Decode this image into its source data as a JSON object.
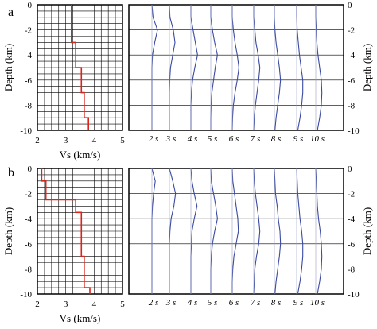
{
  "chart_data": [
    {
      "panel": "a",
      "type": "line",
      "subtype": "step-profile",
      "ylabel": "Depth (km)",
      "xlabel": "Vs (km/s)",
      "xlim": [
        2,
        5
      ],
      "ylim": [
        -10,
        0
      ],
      "xticks": [
        "2",
        "3",
        "4",
        "5"
      ],
      "yticks": [
        "0",
        "-2",
        "-4",
        "-6",
        "-8",
        "-10"
      ],
      "grid": true,
      "profile": [
        {
          "depth": 0,
          "vs": 3.2
        },
        {
          "depth": -3,
          "vs": 3.2
        },
        {
          "depth": -3,
          "vs": 3.35
        },
        {
          "depth": -5,
          "vs": 3.35
        },
        {
          "depth": -5,
          "vs": 3.55
        },
        {
          "depth": -7,
          "vs": 3.55
        },
        {
          "depth": -7,
          "vs": 3.65
        },
        {
          "depth": -9,
          "vs": 3.65
        },
        {
          "depth": -9,
          "vs": 3.8
        },
        {
          "depth": -10,
          "vs": 3.8
        }
      ],
      "line_color": "#d9231b"
    },
    {
      "panel": "a",
      "type": "line",
      "subtype": "sensitivity-kernels",
      "ylabel": "Depth (km)",
      "ylim": [
        -10,
        0
      ],
      "yticks": [
        "0",
        "-2",
        "-4",
        "-6",
        "-8",
        "-10"
      ],
      "series_labels": [
        "2 s",
        "3 s",
        "4 s",
        "5 s",
        "6 s",
        "7 s",
        "8 s",
        "9 s",
        "10 s"
      ],
      "line_color": "#3b4aa0",
      "depths": [
        -1,
        -2,
        -3,
        -4,
        -5,
        -6,
        -7,
        -8,
        -9,
        -10
      ],
      "kernels": [
        [
          0.1,
          0.5,
          0.25,
          0.05,
          0.0,
          0.0,
          0.0,
          0.0,
          0.0,
          0.0
        ],
        [
          0.05,
          0.35,
          0.5,
          0.3,
          0.1,
          0.03,
          0.0,
          0.0,
          0.0,
          0.0
        ],
        [
          0.0,
          0.2,
          0.4,
          0.6,
          0.35,
          0.15,
          0.05,
          0.0,
          0.0,
          0.0
        ],
        [
          0.0,
          0.15,
          0.35,
          0.6,
          0.4,
          0.25,
          0.1,
          0.03,
          0.0,
          0.0
        ],
        [
          0.0,
          0.1,
          0.25,
          0.45,
          0.6,
          0.45,
          0.25,
          0.1,
          0.03,
          0.0
        ],
        [
          0.0,
          0.1,
          0.2,
          0.4,
          0.55,
          0.45,
          0.3,
          0.15,
          0.05,
          0.0
        ],
        [
          0.0,
          0.05,
          0.15,
          0.3,
          0.45,
          0.55,
          0.45,
          0.3,
          0.15,
          0.05
        ],
        [
          0.0,
          0.05,
          0.15,
          0.25,
          0.4,
          0.55,
          0.55,
          0.45,
          0.3,
          0.1
        ],
        [
          0.0,
          0.05,
          0.1,
          0.2,
          0.35,
          0.5,
          0.55,
          0.5,
          0.35,
          0.15
        ]
      ]
    },
    {
      "panel": "b",
      "type": "line",
      "subtype": "step-profile",
      "ylabel": "Depth (km)",
      "xlabel": "Vs (km/s)",
      "xlim": [
        2,
        5
      ],
      "ylim": [
        -10,
        0
      ],
      "xticks": [
        "2",
        "3",
        "4",
        "5"
      ],
      "yticks": [
        "0",
        "-2",
        "-4",
        "-6",
        "-8",
        "-10"
      ],
      "grid": true,
      "profile": [
        {
          "depth": 0,
          "vs": 2.15
        },
        {
          "depth": -1,
          "vs": 2.15
        },
        {
          "depth": -1,
          "vs": 2.3
        },
        {
          "depth": -2.5,
          "vs": 2.3
        },
        {
          "depth": -2.5,
          "vs": 3.35
        },
        {
          "depth": -3.5,
          "vs": 3.35
        },
        {
          "depth": -3.5,
          "vs": 3.55
        },
        {
          "depth": -7,
          "vs": 3.55
        },
        {
          "depth": -7,
          "vs": 3.65
        },
        {
          "depth": -9.5,
          "vs": 3.65
        },
        {
          "depth": -9.5,
          "vs": 3.85
        },
        {
          "depth": -10,
          "vs": 3.85
        }
      ],
      "line_color": "#d9231b"
    },
    {
      "panel": "b",
      "type": "line",
      "subtype": "sensitivity-kernels",
      "ylabel": "Depth (km)",
      "ylim": [
        -10,
        0
      ],
      "yticks": [
        "0",
        "-2",
        "-4",
        "-6",
        "-8",
        "-10"
      ],
      "series_labels": [
        "2 s",
        "3 s",
        "4 s",
        "5 s",
        "6 s",
        "7 s",
        "8 s",
        "9 s",
        "10 s"
      ],
      "line_color": "#3b4aa0",
      "depths": [
        -1,
        -2,
        -3,
        -4,
        -5,
        -6,
        -7,
        -8,
        -9,
        -10
      ],
      "kernels": [
        [
          0.3,
          0.15,
          0.05,
          0.0,
          0.0,
          0.0,
          0.0,
          0.0,
          0.0,
          0.0
        ],
        [
          0.3,
          0.55,
          0.4,
          0.15,
          0.05,
          0.0,
          0.0,
          0.0,
          0.0,
          0.0
        ],
        [
          0.1,
          0.3,
          0.55,
          0.3,
          0.1,
          0.05,
          0.0,
          0.0,
          0.0,
          0.0
        ],
        [
          0.05,
          0.25,
          0.45,
          0.6,
          0.35,
          0.15,
          0.05,
          0.0,
          0.0,
          0.0
        ],
        [
          0.05,
          0.2,
          0.35,
          0.5,
          0.55,
          0.35,
          0.15,
          0.05,
          0.0,
          0.0
        ],
        [
          0.05,
          0.15,
          0.3,
          0.45,
          0.55,
          0.45,
          0.25,
          0.1,
          0.05,
          0.0
        ],
        [
          0.05,
          0.1,
          0.25,
          0.35,
          0.5,
          0.55,
          0.45,
          0.3,
          0.15,
          0.05
        ],
        [
          0.05,
          0.1,
          0.2,
          0.3,
          0.45,
          0.55,
          0.55,
          0.45,
          0.3,
          0.1
        ],
        [
          0.05,
          0.1,
          0.15,
          0.25,
          0.4,
          0.5,
          0.55,
          0.5,
          0.35,
          0.15
        ]
      ]
    }
  ],
  "panel_labels": [
    "a",
    "b"
  ]
}
